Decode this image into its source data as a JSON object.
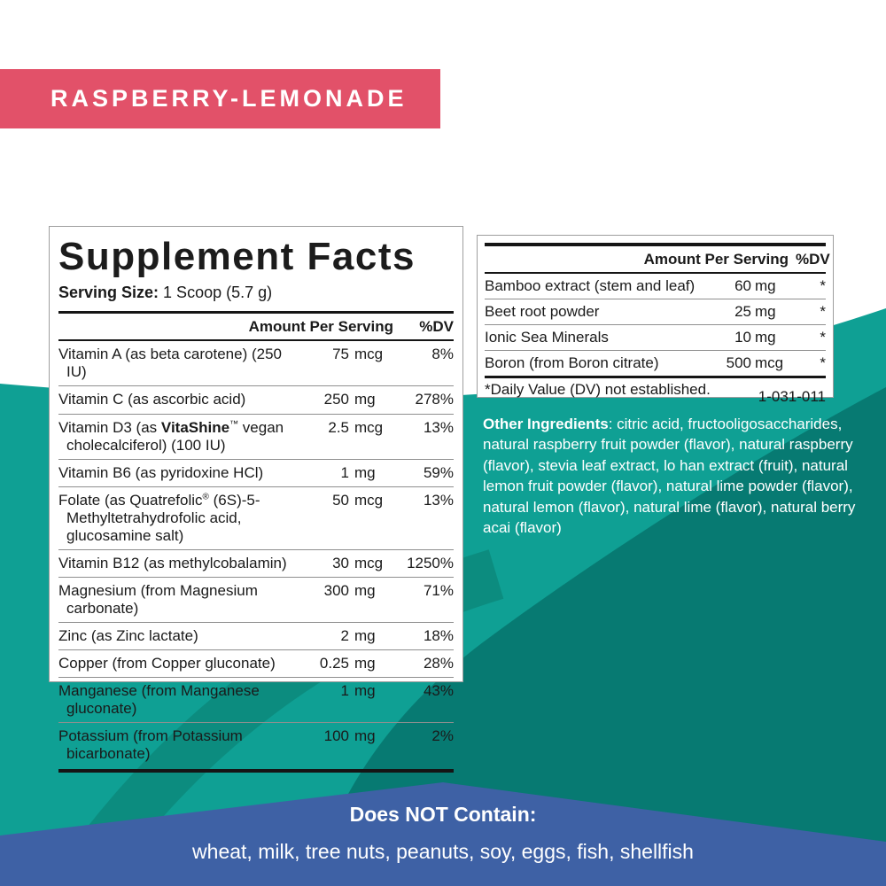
{
  "colors": {
    "flavor_banner_bg": "#E25169",
    "teal_light": "#0FA094",
    "teal_mid": "#0C8C7F",
    "teal_dark": "#077A72",
    "bottom_banner_bg": "#3E61A5",
    "panel_bg": "#FFFFFF",
    "text_dark": "#1A1A1A",
    "text_white": "#FFFFFF"
  },
  "flavor_banner": {
    "label": "RASPBERRY-LEMONADE"
  },
  "supplement_facts": {
    "title": "Supplement Facts",
    "serving_size_label": "Serving Size:",
    "serving_size_value": " 1 Scoop (5.7 g)",
    "columns": {
      "amount": "Amount Per Serving",
      "dv": "%DV"
    },
    "rows": [
      {
        "name": "Vitamin A (as beta carotene) (250 IU)",
        "value": "75",
        "unit": "mcg",
        "dv": "8%"
      },
      {
        "name": "Vitamin C (as ascorbic acid)",
        "value": "250",
        "unit": "mg",
        "dv": "278%"
      },
      {
        "segments": [
          {
            "t": "Vitamin D3 (as "
          },
          {
            "t": "VitaShine",
            "b": true
          },
          {
            "t": "™",
            "sup": true
          },
          {
            "t": " vegan cholecalciferol) (100 IU)"
          }
        ],
        "value": "2.5",
        "unit": "mcg",
        "dv": "13%"
      },
      {
        "name": "Vitamin B6 (as pyridoxine HCl)",
        "value": "1",
        "unit": "mg",
        "dv": "59%"
      },
      {
        "segments": [
          {
            "t": "Folate (as Quatrefolic"
          },
          {
            "t": "®",
            "sup": true
          },
          {
            "t": " (6S)-5-Methyltetrahydrofolic acid, glucosamine salt)"
          }
        ],
        "value": "50",
        "unit": "mcg",
        "dv": "13%"
      },
      {
        "name": "Vitamin B12 (as methylcobalamin)",
        "value": "30",
        "unit": "mcg",
        "dv": "1250%"
      },
      {
        "name": "Magnesium (from Magnesium carbonate)",
        "value": "300",
        "unit": "mg",
        "dv": "71%"
      },
      {
        "name": "Zinc (as Zinc lactate)",
        "value": "2",
        "unit": "mg",
        "dv": "18%"
      },
      {
        "name": "Copper (from Copper gluconate)",
        "value": "0.25",
        "unit": "mg",
        "dv": "28%"
      },
      {
        "name": "Manganese (from Manganese gluconate)",
        "value": "1",
        "unit": "mg",
        "dv": "43%"
      },
      {
        "name": "Potassium (from Potassium bicarbonate)",
        "value": "100",
        "unit": "mg",
        "dv": "2%"
      }
    ]
  },
  "secondary_panel": {
    "columns": {
      "amount": "Amount Per Serving",
      "dv": "%DV"
    },
    "rows": [
      {
        "name": "Bamboo extract (stem and leaf)",
        "value": "60",
        "unit": "mg",
        "dv": "*"
      },
      {
        "name": "Beet root powder",
        "value": "25",
        "unit": "mg",
        "dv": "*"
      },
      {
        "name": "Ionic Sea Minerals",
        "value": "10",
        "unit": "mg",
        "dv": "*"
      },
      {
        "name": "Boron (from Boron citrate)",
        "value": "500",
        "unit": "mcg",
        "dv": "*"
      }
    ],
    "footnote": "*Daily Value (DV) not established.",
    "code": "1-031-011"
  },
  "other_ingredients": {
    "label": "Other Ingredients",
    "text": ": citric acid, fructooligosaccharides, natural raspberry fruit powder (flavor), natural raspberry (flavor), stevia leaf extract, lo han extract (fruit), natural lemon fruit powder (flavor), natural lime powder (flavor), natural lemon (flavor), natural lime (flavor), natural berry acai (flavor)"
  },
  "does_not_contain": {
    "heading": "Does NOT Contain:",
    "items": "wheat, milk, tree nuts, peanuts, soy, eggs, fish, shellfish"
  }
}
